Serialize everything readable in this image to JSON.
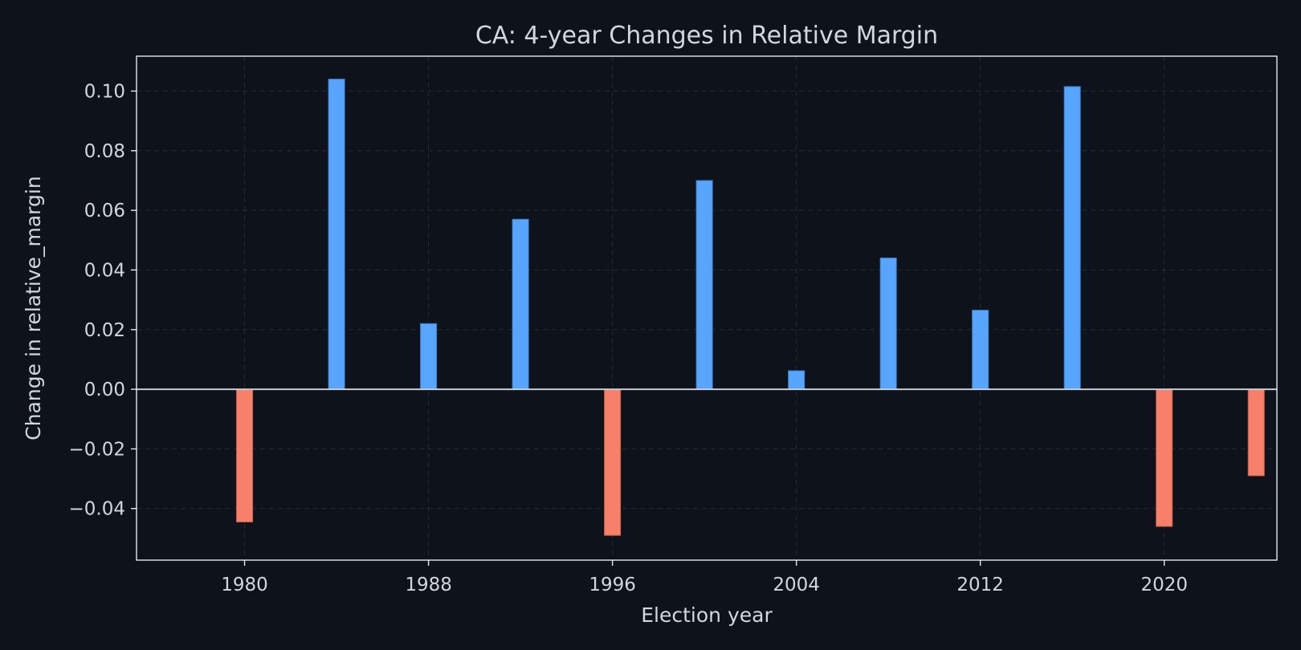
{
  "chart_data": {
    "type": "bar",
    "title": "CA: 4-year Changes in Relative Margin",
    "xlabel": "Election year",
    "ylabel": "Change in relative_margin",
    "x": [
      1980,
      1984,
      1988,
      1992,
      1996,
      2000,
      2004,
      2008,
      2012,
      2016,
      2020,
      2024
    ],
    "values": [
      -0.0445,
      0.104,
      0.022,
      0.057,
      -0.049,
      0.07,
      0.0062,
      0.044,
      0.0265,
      0.1015,
      -0.046,
      -0.029
    ],
    "xlim": [
      1975.3,
      2024.9
    ],
    "ylim": [
      -0.0573,
      0.1117
    ],
    "xticks": [
      1980,
      1988,
      1996,
      2004,
      2012,
      2020
    ],
    "xtick_labels": [
      "1980",
      "1988",
      "1996",
      "2004",
      "2012",
      "2020"
    ],
    "yticks": [
      -0.04,
      -0.02,
      0.0,
      0.02,
      0.04,
      0.06,
      0.08,
      0.1
    ],
    "ytick_labels": [
      "−0.04",
      "−0.02",
      "0.00",
      "0.02",
      "0.04",
      "0.06",
      "0.08",
      "0.10"
    ],
    "grid": true,
    "bar_width_years": 0.7,
    "colors": {
      "positive": "#57a5ff",
      "negative": "#f6806a",
      "background": "#0e121a",
      "text": "#d2d6de"
    }
  }
}
